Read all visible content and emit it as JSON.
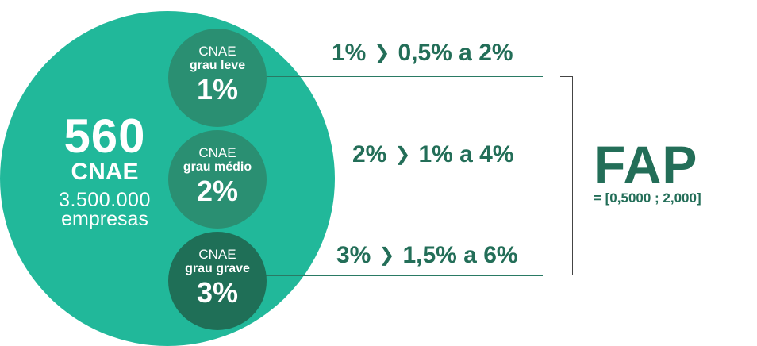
{
  "main": {
    "number": "560",
    "cnae": "CNAE",
    "count": "3.500.000",
    "companies": "empresas"
  },
  "levels": [
    {
      "label": "CNAE",
      "grade": "grau leve",
      "percent": "1%",
      "rate": "1%",
      "range": "0,5% a 2%"
    },
    {
      "label": "CNAE",
      "grade": "grau médio",
      "percent": "2%",
      "rate": "2%",
      "range": "1% a 4%"
    },
    {
      "label": "CNAE",
      "grade": "grau grave",
      "percent": "3%",
      "rate": "3%",
      "range": "1,5% a 6%"
    }
  ],
  "arrow_glyph": "❯",
  "fap": {
    "title": "FAP",
    "range": "= [0,5000 ; 2,000]"
  },
  "colors": {
    "main_circle": "#21b89a",
    "light_circle": "#2a8f72",
    "dark_circle": "#1f6f57",
    "text_green": "#236e58"
  }
}
